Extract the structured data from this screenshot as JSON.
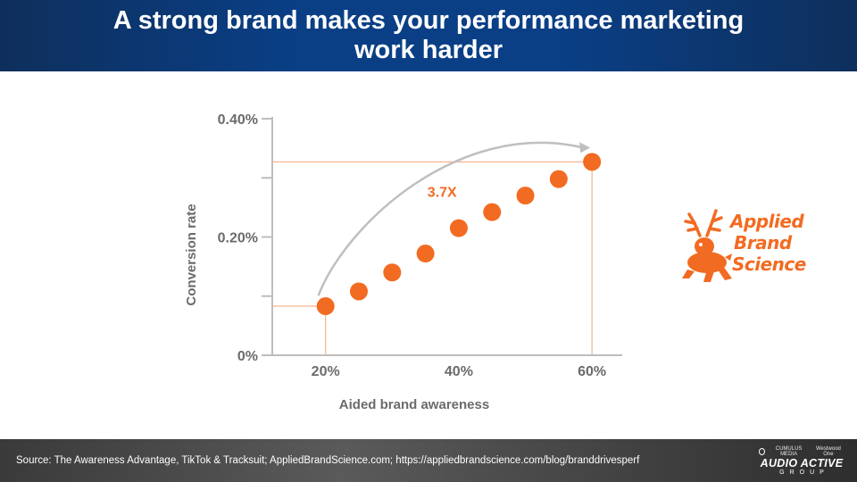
{
  "slide": {
    "title": "A strong brand makes your performance marketing work harder",
    "source": "Source: The Awareness Advantage, TikTok & Tracksuit; AppliedBrandScience.com; https://appliedbrandscience.com/blog/branddrivesperf"
  },
  "logo": {
    "lines": [
      "Applied",
      "Brand",
      "Science"
    ],
    "color": "#f26b22",
    "icon": "jackalope-icon"
  },
  "footer_brand": {
    "top_left": "CUMULUS MEDIA",
    "top_right": "Westwood One",
    "name": "AUDIO ACTIVE",
    "sub": "GROUP"
  },
  "colors": {
    "accent": "#f26b22",
    "guide": "#f4b48c",
    "axis": "#bdbdbd",
    "label": "#6b6b6b",
    "arrow": "#bfbfbf"
  },
  "chart_data": {
    "type": "scatter",
    "xlabel": "Aided brand awareness",
    "ylabel": "Conversion rate",
    "xlim": [
      12,
      64
    ],
    "ylim": [
      0,
      0.4
    ],
    "x_ticks": [
      20,
      40,
      60
    ],
    "x_tick_labels": [
      "20%",
      "40%",
      "60%"
    ],
    "y_ticks": [
      0,
      0.2,
      0.4
    ],
    "y_tick_labels": [
      "0%",
      "0.20%",
      "0.40%"
    ],
    "y_minor_ticks": [
      0.1,
      0.3
    ],
    "series": [
      {
        "x": [
          20,
          25,
          30,
          35,
          40,
          45,
          50,
          55,
          60
        ],
        "y": [
          0.083,
          0.108,
          0.14,
          0.172,
          0.215,
          0.242,
          0.27,
          0.298,
          0.327
        ]
      }
    ],
    "annotation": {
      "text": "3.7X",
      "x": 37.5,
      "y": 0.268
    },
    "grid": false,
    "legend": "none"
  }
}
